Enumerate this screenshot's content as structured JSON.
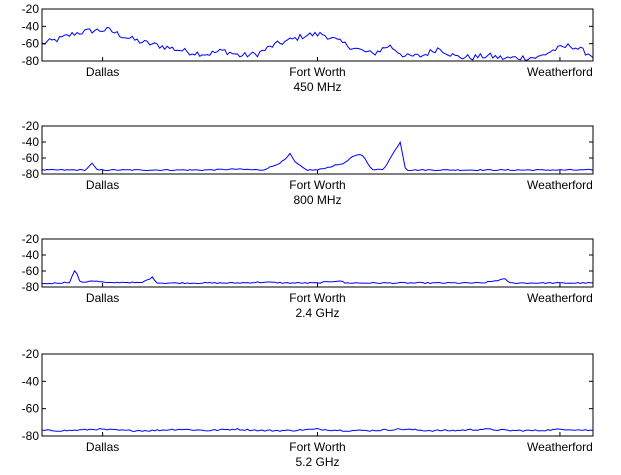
{
  "chart_data": [
    {
      "type": "line",
      "title": "",
      "xlabel": "450 MHz",
      "ylabel": "",
      "ylim": [
        -80,
        -20
      ],
      "yticks": [
        -80,
        -60,
        -40,
        -20
      ],
      "xticks": [
        "Dallas",
        "Fort Worth",
        "Weatherford"
      ],
      "grid": false,
      "color": "#0000ff",
      "series": [
        {
          "x": [
            0,
            0.03,
            0.06,
            0.09,
            0.12,
            0.15,
            0.18,
            0.21,
            0.24,
            0.27,
            0.3,
            0.33,
            0.36,
            0.39,
            0.42,
            0.45,
            0.48,
            0.51,
            0.54,
            0.57,
            0.6,
            0.63,
            0.66,
            0.69,
            0.72,
            0.75,
            0.78,
            0.81,
            0.84,
            0.87,
            0.9,
            0.93,
            0.96,
            1.0
          ],
          "values": [
            -60,
            -55,
            -48,
            -45,
            -44,
            -52,
            -58,
            -62,
            -66,
            -70,
            -72,
            -68,
            -74,
            -72,
            -62,
            -56,
            -50,
            -49,
            -58,
            -66,
            -72,
            -62,
            -75,
            -74,
            -65,
            -75,
            -76,
            -74,
            -77,
            -76,
            -76,
            -67,
            -62,
            -74
          ]
        }
      ]
    },
    {
      "type": "line",
      "title": "",
      "xlabel": "800 MHz",
      "ylabel": "",
      "ylim": [
        -80,
        -20
      ],
      "yticks": [
        -80,
        -60,
        -40,
        -20
      ],
      "xticks": [
        "Dallas",
        "Fort Worth",
        "Weatherford"
      ],
      "grid": false,
      "color": "#0000ff",
      "series": [
        {
          "x": [
            0,
            0.03,
            0.06,
            0.08,
            0.09,
            0.1,
            0.15,
            0.2,
            0.25,
            0.3,
            0.35,
            0.4,
            0.42,
            0.44,
            0.45,
            0.46,
            0.48,
            0.5,
            0.55,
            0.56,
            0.57,
            0.58,
            0.6,
            0.62,
            0.65,
            0.66,
            0.67,
            0.7,
            0.75,
            0.8,
            0.85,
            0.9,
            0.95,
            1.0
          ],
          "values": [
            -75,
            -75,
            -75,
            -75,
            -66,
            -75,
            -75,
            -75,
            -75,
            -75,
            -74,
            -75,
            -70,
            -63,
            -55,
            -66,
            -75,
            -75,
            -66,
            -60,
            -57,
            -55,
            -75,
            -74,
            -40,
            -75,
            -75,
            -75,
            -75,
            -75,
            -75,
            -75,
            -75,
            -75
          ]
        }
      ]
    },
    {
      "type": "line",
      "title": "",
      "xlabel": "2.4 GHz",
      "ylabel": "",
      "ylim": [
        -80,
        -20
      ],
      "yticks": [
        -80,
        -60,
        -40,
        -20
      ],
      "xticks": [
        "Dallas",
        "Fort Worth",
        "Weatherford"
      ],
      "grid": false,
      "color": "#0000ff",
      "series": [
        {
          "x": [
            0,
            0.03,
            0.05,
            0.06,
            0.07,
            0.09,
            0.12,
            0.15,
            0.18,
            0.2,
            0.21,
            0.25,
            0.3,
            0.35,
            0.4,
            0.45,
            0.5,
            0.54,
            0.55,
            0.6,
            0.65,
            0.7,
            0.75,
            0.8,
            0.84,
            0.85,
            0.9,
            0.95,
            1.0
          ],
          "values": [
            -76,
            -75,
            -74,
            -58,
            -75,
            -72,
            -75,
            -74,
            -75,
            -68,
            -75,
            -75,
            -75,
            -75,
            -74,
            -75,
            -75,
            -72,
            -75,
            -75,
            -75,
            -75,
            -75,
            -75,
            -70,
            -75,
            -75,
            -75,
            -75
          ]
        }
      ]
    },
    {
      "type": "line",
      "title": "",
      "xlabel": "5.2 GHz",
      "ylabel": "",
      "ylim": [
        -80,
        -20
      ],
      "yticks": [
        -80,
        -60,
        -40,
        -20
      ],
      "xticks": [
        "Dallas",
        "Fort Worth",
        "Weatherford"
      ],
      "grid": false,
      "color": "#0000ff",
      "series": [
        {
          "x": [
            0,
            0.05,
            0.1,
            0.15,
            0.2,
            0.25,
            0.3,
            0.35,
            0.4,
            0.45,
            0.5,
            0.55,
            0.6,
            0.65,
            0.7,
            0.75,
            0.8,
            0.85,
            0.9,
            0.95,
            1.0
          ],
          "values": [
            -76,
            -76,
            -75,
            -76,
            -76,
            -75,
            -76,
            -75,
            -76,
            -76,
            -75,
            -76,
            -76,
            -75,
            -76,
            -76,
            -75,
            -76,
            -76,
            -75,
            -76
          ]
        }
      ]
    }
  ]
}
